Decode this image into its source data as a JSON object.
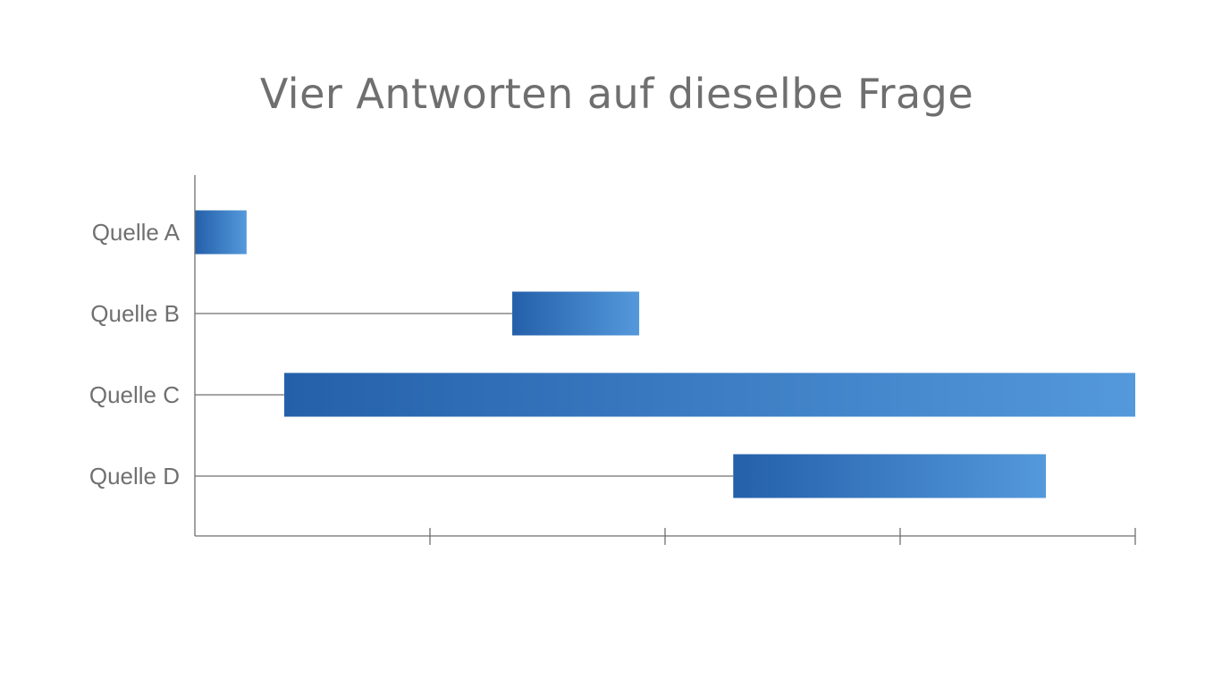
{
  "chart_data": {
    "type": "bar",
    "orientation": "horizontal",
    "style": "floating-range",
    "title": "Vier Antworten auf dieselbe Frage",
    "xlabel": "",
    "ylabel": "",
    "xlim": [
      0,
      4
    ],
    "x_ticks": [
      1,
      2,
      3,
      4
    ],
    "x_tick_labels_visible": false,
    "grid": false,
    "legend": "none",
    "categories": [
      "Quelle A",
      "Quelle B",
      "Quelle C",
      "Quelle D"
    ],
    "ranges": [
      {
        "start": 0.0,
        "end": 0.22
      },
      {
        "start": 1.35,
        "end": 1.89
      },
      {
        "start": 0.38,
        "end": 4.0
      },
      {
        "start": 2.29,
        "end": 3.62
      }
    ],
    "colors": {
      "bar_start": "#2460AA",
      "bar_end": "#5499DB",
      "axis": "#6f6f6f",
      "guide_line": "#6f6f6f",
      "text": "#707070"
    }
  }
}
